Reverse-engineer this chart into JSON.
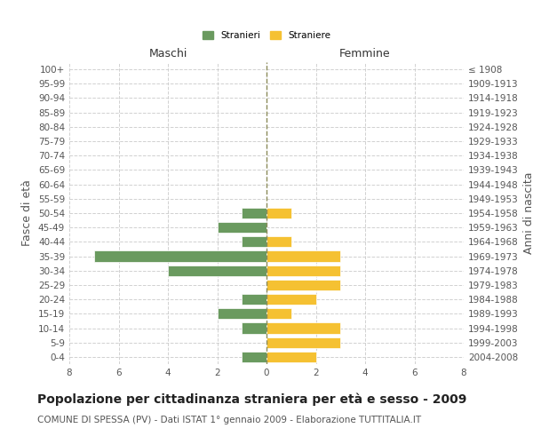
{
  "age_groups": [
    "100+",
    "95-99",
    "90-94",
    "85-89",
    "80-84",
    "75-79",
    "70-74",
    "65-69",
    "60-64",
    "55-59",
    "50-54",
    "45-49",
    "40-44",
    "35-39",
    "30-34",
    "25-29",
    "20-24",
    "15-19",
    "10-14",
    "5-9",
    "0-4"
  ],
  "birth_years": [
    "≤ 1908",
    "1909-1913",
    "1914-1918",
    "1919-1923",
    "1924-1928",
    "1929-1933",
    "1934-1938",
    "1939-1943",
    "1944-1948",
    "1949-1953",
    "1954-1958",
    "1959-1963",
    "1964-1968",
    "1969-1973",
    "1974-1978",
    "1979-1983",
    "1984-1988",
    "1989-1993",
    "1994-1998",
    "1999-2003",
    "2004-2008"
  ],
  "males": [
    0,
    0,
    0,
    0,
    0,
    0,
    0,
    0,
    0,
    0,
    1,
    2,
    1,
    7,
    4,
    0,
    1,
    2,
    1,
    0,
    1
  ],
  "females": [
    0,
    0,
    0,
    0,
    0,
    0,
    0,
    0,
    0,
    0,
    1,
    0,
    1,
    3,
    3,
    3,
    2,
    1,
    3,
    3,
    2
  ],
  "color_male": "#6a9a5f",
  "color_female": "#f5c132",
  "title": "Popolazione per cittadinanza straniera per età e sesso - 2009",
  "subtitle": "COMUNE DI SPESSA (PV) - Dati ISTAT 1° gennaio 2009 - Elaborazione TUTTITALIA.IT",
  "ylabel_left": "Fasce di età",
  "ylabel_right": "Anni di nascita",
  "xlabel_maschi": "Maschi",
  "xlabel_femmine": "Femmine",
  "legend_male": "Stranieri",
  "legend_female": "Straniere",
  "xlim": 8,
  "background_color": "#ffffff",
  "grid_color": "#cccccc",
  "center_line_color": "#8b8b5a",
  "title_fontsize": 10,
  "subtitle_fontsize": 7.5,
  "tick_fontsize": 7.5,
  "label_fontsize": 9
}
